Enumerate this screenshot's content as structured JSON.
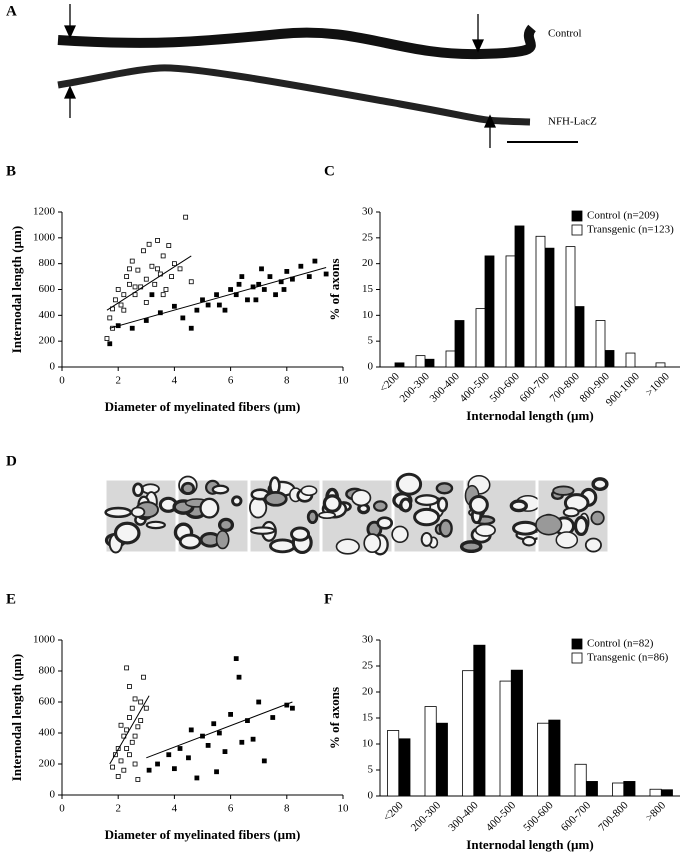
{
  "panel_a": {
    "letter": "A",
    "labels": [
      "Control",
      "NFH-LacZ"
    ]
  },
  "panel_d": {
    "letter": "D"
  },
  "chart_data": [
    {
      "type": "scatter",
      "letter": "B",
      "x_label": "Diameter of myelinated fibers (µm)",
      "y_label": "Internodal length (µm)",
      "xlim": [
        0,
        10
      ],
      "xticks": [
        0,
        2,
        4,
        6,
        8,
        10
      ],
      "ylim": [
        0,
        1200
      ],
      "yticks": [
        0,
        200,
        400,
        600,
        800,
        1000,
        1200
      ],
      "series": [
        {
          "marker": "open",
          "color": "#000000",
          "x": [
            1.6,
            1.7,
            1.8,
            1.9,
            2.0,
            2.1,
            2.2,
            2.3,
            2.4,
            2.5,
            2.6,
            2.7,
            2.8,
            2.9,
            3.0,
            3.1,
            3.2,
            3.3,
            3.4,
            3.5,
            3.6,
            3.7,
            3.8,
            3.9,
            4.0,
            4.2,
            4.4,
            4.6,
            2.2,
            2.6,
            3.0,
            3.4,
            1.8,
            2.4,
            3.6
          ],
          "values": [
            220,
            380,
            450,
            520,
            600,
            480,
            560,
            700,
            640,
            820,
            560,
            750,
            620,
            900,
            680,
            950,
            780,
            640,
            980,
            720,
            860,
            600,
            940,
            700,
            800,
            760,
            1160,
            660,
            440,
            620,
            500,
            760,
            300,
            760,
            560
          ],
          "trend": {
            "x": [
              1.6,
              4.6
            ],
            "values": [
              440,
              860
            ]
          }
        },
        {
          "marker": "filled",
          "color": "#000000",
          "x": [
            1.7,
            2.0,
            2.5,
            3.0,
            3.5,
            4.0,
            4.3,
            4.6,
            5.0,
            5.2,
            5.5,
            5.8,
            6.0,
            6.2,
            6.4,
            6.6,
            6.8,
            7.0,
            7.2,
            7.4,
            7.6,
            7.8,
            8.0,
            8.2,
            8.5,
            8.8,
            9.0,
            9.4,
            4.8,
            5.6,
            6.3,
            7.1,
            7.9,
            3.2,
            6.9
          ],
          "values": [
            180,
            320,
            300,
            360,
            420,
            470,
            380,
            300,
            520,
            480,
            560,
            440,
            600,
            560,
            700,
            520,
            620,
            640,
            600,
            700,
            560,
            660,
            740,
            680,
            780,
            700,
            820,
            720,
            440,
            480,
            640,
            760,
            600,
            560,
            520
          ],
          "trend": {
            "x": [
              1.7,
              9.4
            ],
            "values": [
              300,
              770
            ]
          }
        }
      ]
    },
    {
      "type": "bar",
      "letter": "C",
      "x_label": "Internodal length (µm)",
      "y_label": "% of axons",
      "legend": "upper right",
      "categories": [
        "<200",
        "200-300",
        "300-400",
        "400-500",
        "500-600",
        "600-700",
        "700-800",
        "800-900",
        "900-1000",
        ">1000"
      ],
      "ylim": [
        0,
        30
      ],
      "yticks": [
        0,
        5,
        10,
        15,
        20,
        25,
        30
      ],
      "series": [
        {
          "name": "Control (n=209)",
          "color": "#000000",
          "values": [
            0.8,
            1.5,
            9,
            21.5,
            27.3,
            23,
            11.7,
            3.2,
            0,
            0
          ]
        },
        {
          "name": "Transgenic (n=123)",
          "color": "#ffffff",
          "values": [
            0,
            2.2,
            3.1,
            11.3,
            21.5,
            25.3,
            23.3,
            9,
            2.7,
            0.8
          ]
        }
      ]
    },
    {
      "type": "scatter",
      "letter": "E",
      "x_label": "Diameter of myelinated fibers (µm)",
      "y_label": "Internodal length (µm)",
      "xlim": [
        0,
        10
      ],
      "xticks": [
        0,
        2,
        4,
        6,
        8,
        10
      ],
      "ylim": [
        0,
        1000
      ],
      "yticks": [
        0,
        200,
        400,
        600,
        800,
        1000
      ],
      "series": [
        {
          "marker": "open",
          "color": "#000000",
          "x": [
            1.8,
            1.9,
            2.0,
            2.1,
            2.2,
            2.2,
            2.3,
            2.3,
            2.4,
            2.4,
            2.5,
            2.5,
            2.6,
            2.6,
            2.7,
            2.8,
            2.9,
            3.0,
            2.0,
            2.4,
            2.7,
            2.3,
            2.1,
            2.6,
            2.8
          ],
          "values": [
            180,
            260,
            300,
            220,
            380,
            160,
            420,
            300,
            500,
            260,
            560,
            340,
            620,
            200,
            440,
            480,
            760,
            560,
            120,
            700,
            100,
            820,
            450,
            380,
            600
          ],
          "trend": {
            "x": [
              1.7,
              3.1
            ],
            "values": [
              200,
              640
            ]
          }
        },
        {
          "marker": "filled",
          "color": "#000000",
          "x": [
            3.1,
            3.4,
            3.8,
            4.0,
            4.2,
            4.5,
            4.8,
            5.0,
            5.2,
            5.4,
            5.6,
            5.8,
            6.0,
            6.2,
            6.4,
            6.6,
            6.8,
            7.0,
            7.2,
            7.5,
            8.0,
            8.2,
            4.6,
            5.5,
            6.3
          ],
          "values": [
            160,
            200,
            260,
            170,
            300,
            240,
            110,
            380,
            320,
            460,
            400,
            280,
            520,
            880,
            340,
            480,
            360,
            600,
            220,
            500,
            580,
            560,
            420,
            150,
            760
          ],
          "trend": {
            "x": [
              3.0,
              8.2
            ],
            "values": [
              240,
              600
            ]
          }
        }
      ]
    },
    {
      "type": "bar",
      "letter": "F",
      "x_label": "Internodal length (µm)",
      "y_label": "% of axons",
      "legend": "upper right",
      "categories": [
        "<200",
        "200-300",
        "300-400",
        "400-500",
        "500-600",
        "600-700",
        "700-800",
        ">800"
      ],
      "ylim": [
        0,
        30
      ],
      "yticks": [
        0,
        5,
        10,
        15,
        20,
        25,
        30
      ],
      "series": [
        {
          "name": "Control (n=82)",
          "color": "#000000",
          "values": [
            11,
            14,
            29,
            24.2,
            14.6,
            2.8,
            2.8,
            1.2
          ]
        },
        {
          "name": "Transgenic (n=86)",
          "color": "#ffffff",
          "values": [
            12.6,
            17.2,
            24.1,
            22.1,
            14,
            6.1,
            2.5,
            1.3
          ]
        }
      ]
    }
  ]
}
